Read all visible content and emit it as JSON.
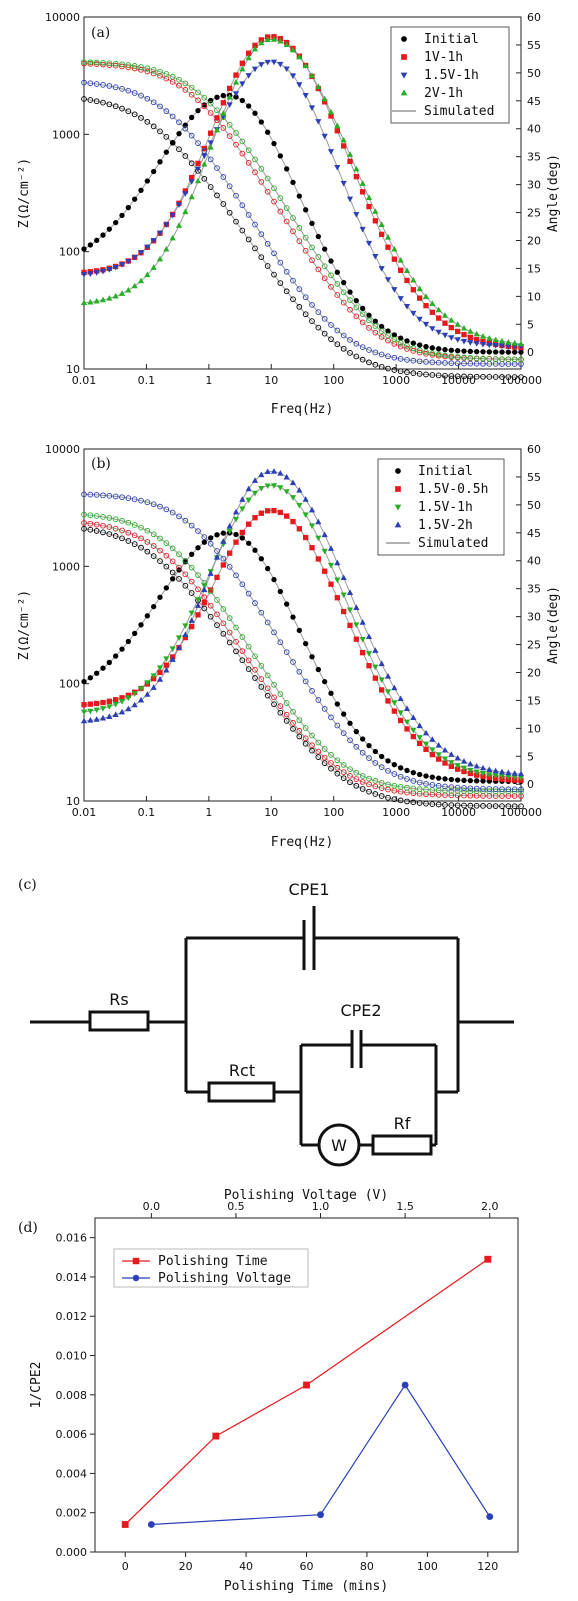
{
  "chart_data": [
    {
      "panel": "(a)",
      "type": "scatter",
      "xlabel": "Freq(Hz)",
      "ylabel_left": "Z(Ω/cm⁻²)",
      "ylabel_right": "Angle(deg)",
      "x_scale": "log",
      "y_left_scale": "log",
      "xlim": [
        0.01,
        100000
      ],
      "ylim_left": [
        10,
        10000
      ],
      "ylim_right": [
        -3,
        60
      ],
      "x_ticks": [
        "0.01",
        "0.1",
        "1",
        "10",
        "100",
        "1000",
        "10000",
        "100000"
      ],
      "y_left_ticks": [
        "10",
        "100",
        "1000",
        "10000"
      ],
      "y_right_ticks": [
        "0",
        "5",
        "10",
        "15",
        "20",
        "25",
        "30",
        "35",
        "40",
        "45",
        "50",
        "55",
        "60"
      ],
      "legend": [
        "Initial",
        "1V-1h",
        "1.5V-1h",
        "2V-1h",
        "Simulated"
      ],
      "legend_position": "top-right",
      "series": [
        {
          "name": "Initial",
          "color": "#000000",
          "marker": "circle",
          "Z_low": 2200,
          "Rs": 8.5,
          "Z_knee": 0.15,
          "Z_slope": 0.85,
          "phase_low": 15,
          "phase_peak": 46,
          "phase_high": 0,
          "f_peak": 2.0,
          "w_left": 1.1,
          "w_right": 1.15
        },
        {
          "name": "1V-1h",
          "color": "#e8191c",
          "marker": "square",
          "Z_low": 4100,
          "Rs": 12,
          "Z_knee": 0.6,
          "Z_slope": 0.93,
          "phase_low": 14,
          "phase_peak": 56.5,
          "phase_high": 0.5,
          "f_peak": 10,
          "w_left": 0.95,
          "w_right": 1.25
        },
        {
          "name": "1.5V-1h",
          "color": "#2a3fb8",
          "marker": "triangle-down",
          "Z_low": 2900,
          "Rs": 11,
          "Z_knee": 0.25,
          "Z_slope": 0.92,
          "phase_low": 13.5,
          "phase_peak": 52,
          "phase_high": 1.0,
          "f_peak": 10,
          "w_left": 1.0,
          "w_right": 1.1
        },
        {
          "name": "2V-1h",
          "color": "#27b024",
          "marker": "triangle-up",
          "Z_low": 4200,
          "Rs": 12,
          "Z_knee": 0.8,
          "Z_slope": 0.93,
          "phase_low": 8.5,
          "phase_peak": 56,
          "phase_high": 1.0,
          "f_peak": 10,
          "w_left": 0.95,
          "w_right": 1.3
        }
      ]
    },
    {
      "panel": "(b)",
      "type": "scatter",
      "xlabel": "Freq(Hz)",
      "ylabel_left": "Z(Ω/cm⁻²)",
      "ylabel_right": "Angle(deg)",
      "x_scale": "log",
      "y_left_scale": "log",
      "xlim": [
        0.01,
        100000
      ],
      "ylim_left": [
        10,
        10000
      ],
      "ylim_right": [
        -3,
        60
      ],
      "x_ticks": [
        "0.01",
        "0.1",
        "1",
        "10",
        "100",
        "1000",
        "10000",
        "100000"
      ],
      "y_left_ticks": [
        "10",
        "100",
        "1000",
        "10000"
      ],
      "y_right_ticks": [
        "0",
        "5",
        "10",
        "15",
        "20",
        "25",
        "30",
        "35",
        "40",
        "45",
        "50",
        "55",
        "60"
      ],
      "legend": [
        "Initial",
        "1.5V-0.5h",
        "1.5V-1h",
        "1.5V-2h",
        "Simulated"
      ],
      "legend_position": "top-right",
      "series": [
        {
          "name": "Initial",
          "color": "#000000",
          "marker": "circle",
          "Z_low": 2300,
          "Rs": 9,
          "Z_knee": 0.15,
          "Z_slope": 0.85,
          "phase_low": 15,
          "phase_peak": 45,
          "phase_high": 0.5,
          "f_peak": 2.0,
          "w_left": 1.1,
          "w_right": 1.15
        },
        {
          "name": "1.5V-0.5h",
          "color": "#e8191c",
          "marker": "square",
          "Z_low": 2500,
          "Rs": 11,
          "Z_knee": 0.2,
          "Z_slope": 0.9,
          "phase_low": 14,
          "phase_peak": 49,
          "phase_high": 0.5,
          "f_peak": 10,
          "w_left": 0.95,
          "w_right": 1.2
        },
        {
          "name": "1.5V-1h",
          "color": "#27b024",
          "marker": "triangle-down",
          "Z_low": 2900,
          "Rs": 12,
          "Z_knee": 0.25,
          "Z_slope": 0.92,
          "phase_low": 12.5,
          "phase_peak": 53.5,
          "phase_high": 1.0,
          "f_peak": 10,
          "w_left": 1.0,
          "w_right": 1.2
        },
        {
          "name": "1.5V-2h",
          "color": "#2a3fb8",
          "marker": "triangle-up",
          "Z_low": 4200,
          "Rs": 12.5,
          "Z_knee": 0.6,
          "Z_slope": 0.93,
          "phase_low": 11,
          "phase_peak": 56,
          "phase_high": 1.5,
          "f_peak": 10,
          "w_left": 0.95,
          "w_right": 1.25
        }
      ]
    },
    {
      "panel": "(d)",
      "type": "line",
      "xlabel_bottom": "Polishing Time (mins)",
      "xlabel_top": "Polishing Voltage (V)",
      "ylabel": "1/CPE2",
      "xlim_bottom": [
        -10,
        130
      ],
      "xlim_top": [
        -0.333,
        2.167
      ],
      "ylim": [
        0,
        0.017
      ],
      "x_bottom_ticks": [
        "0",
        "20",
        "40",
        "60",
        "80",
        "100",
        "120"
      ],
      "x_top_ticks": [
        "0.0",
        "0.5",
        "1.0",
        "1.5",
        "2.0"
      ],
      "y_ticks": [
        "0.000",
        "0.002",
        "0.004",
        "0.006",
        "0.008",
        "0.010",
        "0.012",
        "0.014",
        "0.016"
      ],
      "legend_position": "top-left",
      "series": [
        {
          "name": "Polishing Time",
          "color": "#e8191c",
          "marker": "square",
          "axis": "bottom",
          "x": [
            0,
            30,
            60,
            120
          ],
          "y": [
            0.0014,
            0.0059,
            0.0085,
            0.0149
          ]
        },
        {
          "name": "Polishing Voltage",
          "color": "#2a3fb8",
          "marker": "circle",
          "axis": "top",
          "x": [
            0,
            1.0,
            1.5,
            2.0
          ],
          "y": [
            0.0014,
            0.0019,
            0.0085,
            0.0018
          ]
        }
      ]
    }
  ],
  "circuit": {
    "panel": "(c)",
    "labels": {
      "cpe1": "CPE1",
      "rs": "Rs",
      "cpe2": "CPE2",
      "rct": "Rct",
      "w": "W",
      "rf": "Rf"
    }
  }
}
